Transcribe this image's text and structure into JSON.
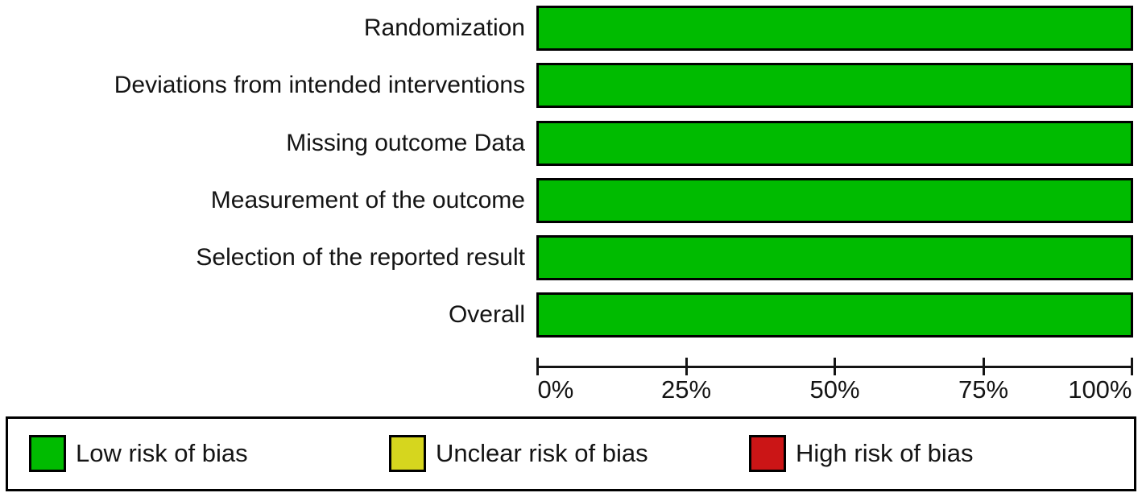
{
  "chart_data": {
    "type": "bar",
    "orientation": "horizontal",
    "title": "",
    "xlabel": "",
    "ylabel": "",
    "categories": [
      "Randomization",
      "Deviations from intended interventions",
      "Missing outcome Data",
      "Measurement of the outcome",
      "Selection of the reported result",
      "Overall"
    ],
    "series": [
      {
        "name": "Low risk of bias",
        "color": "#00bb00",
        "values": [
          100,
          100,
          100,
          100,
          100,
          100
        ]
      },
      {
        "name": "Unclear risk of bias",
        "color": "#d6d61e",
        "values": [
          0,
          0,
          0,
          0,
          0,
          0
        ]
      },
      {
        "name": "High risk of bias",
        "color": "#cb1516",
        "values": [
          0,
          0,
          0,
          0,
          0,
          0
        ]
      }
    ],
    "xlim": [
      0,
      100
    ],
    "x_tick_values": [
      0,
      25,
      50,
      75,
      100
    ],
    "x_tick_labels": [
      "0%",
      "25%",
      "50%",
      "75%",
      "100%"
    ],
    "grid": false,
    "legend_position": "bottom",
    "bar_border_color": "#000000",
    "axis_color": "#141414",
    "background_color": "#ffffff"
  },
  "legend": {
    "items": [
      {
        "label": "Low risk of bias",
        "color": "#00bb00"
      },
      {
        "label": "Unclear risk of bias",
        "color": "#d6d61e"
      },
      {
        "label": "High risk of bias",
        "color": "#cb1516"
      }
    ]
  }
}
